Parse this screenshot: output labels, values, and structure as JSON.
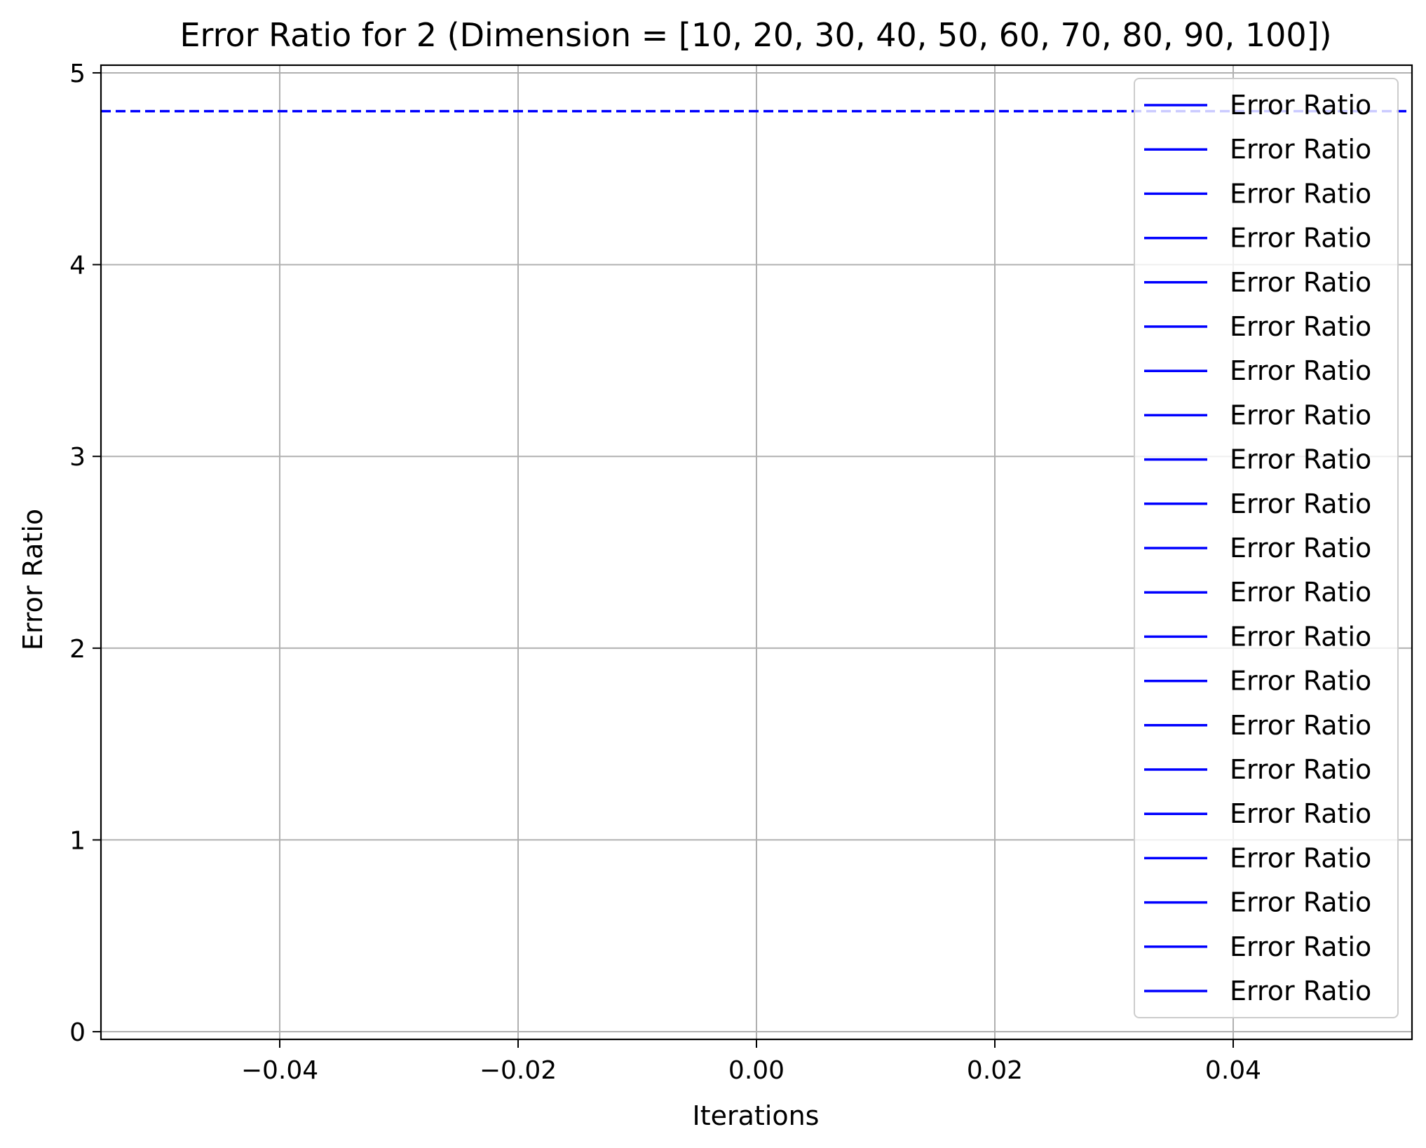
{
  "chart_data": {
    "type": "line",
    "title": "Error Ratio for 2 (Dimension = [10, 20, 30, 40, 50, 60, 70, 80, 90, 100])",
    "xlabel": "Iterations",
    "ylabel": "Error Ratio",
    "xlim": [
      -0.055,
      0.055
    ],
    "ylim": [
      -0.04,
      5.04
    ],
    "xticks": [
      -0.04,
      -0.02,
      0.0,
      0.02,
      0.04
    ],
    "xtick_labels": [
      "−0.04",
      "−0.02",
      "0.00",
      "0.02",
      "0.04"
    ],
    "yticks": [
      0,
      1,
      2,
      3,
      4,
      5
    ],
    "ytick_labels": [
      "0",
      "1",
      "2",
      "3",
      "4",
      "5"
    ],
    "grid": true,
    "legend_position": "top-right",
    "series_color": "#0000ff",
    "reference_line": {
      "y": 4.8,
      "style": "dashed",
      "color": "#0000ff"
    },
    "series": [
      {
        "name": "Error Ratio",
        "x": [
          0
        ],
        "y": [
          4.8
        ]
      },
      {
        "name": "Error Ratio",
        "x": [
          0
        ],
        "y": [
          4.8
        ]
      },
      {
        "name": "Error Ratio",
        "x": [
          0
        ],
        "y": [
          4.8
        ]
      },
      {
        "name": "Error Ratio",
        "x": [
          0
        ],
        "y": [
          4.8
        ]
      },
      {
        "name": "Error Ratio",
        "x": [
          0
        ],
        "y": [
          4.8
        ]
      },
      {
        "name": "Error Ratio",
        "x": [
          0
        ],
        "y": [
          4.8
        ]
      },
      {
        "name": "Error Ratio",
        "x": [
          0
        ],
        "y": [
          4.8
        ]
      },
      {
        "name": "Error Ratio",
        "x": [
          0
        ],
        "y": [
          4.8
        ]
      },
      {
        "name": "Error Ratio",
        "x": [
          0
        ],
        "y": [
          4.8
        ]
      },
      {
        "name": "Error Ratio",
        "x": [
          0
        ],
        "y": [
          4.8
        ]
      },
      {
        "name": "Error Ratio",
        "x": [
          0
        ],
        "y": [
          4.8
        ]
      },
      {
        "name": "Error Ratio",
        "x": [
          0
        ],
        "y": [
          4.8
        ]
      },
      {
        "name": "Error Ratio",
        "x": [
          0
        ],
        "y": [
          4.8
        ]
      },
      {
        "name": "Error Ratio",
        "x": [
          0
        ],
        "y": [
          4.8
        ]
      },
      {
        "name": "Error Ratio",
        "x": [
          0
        ],
        "y": [
          4.8
        ]
      },
      {
        "name": "Error Ratio",
        "x": [
          0
        ],
        "y": [
          4.8
        ]
      },
      {
        "name": "Error Ratio",
        "x": [
          0
        ],
        "y": [
          4.8
        ]
      },
      {
        "name": "Error Ratio",
        "x": [
          0
        ],
        "y": [
          4.8
        ]
      },
      {
        "name": "Error Ratio",
        "x": [
          0
        ],
        "y": [
          4.8
        ]
      },
      {
        "name": "Error Ratio",
        "x": [
          0
        ],
        "y": [
          4.8
        ]
      },
      {
        "name": "Error Ratio",
        "x": [
          0
        ],
        "y": [
          4.8
        ]
      }
    ]
  }
}
